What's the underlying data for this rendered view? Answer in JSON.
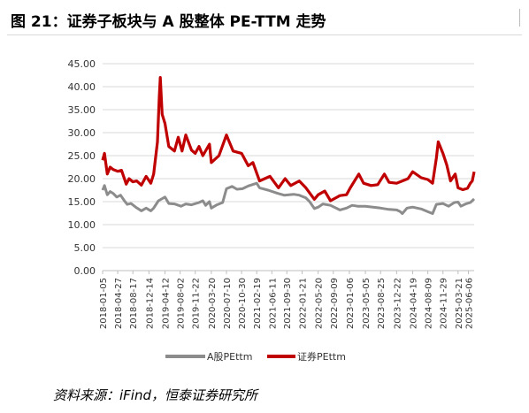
{
  "figure": {
    "title": "图 21：证券子板块与 A 股整体 PE-TTM 走势",
    "source": "资料来源：iFind，恒泰证券研究所"
  },
  "chart_data": {
    "type": "line",
    "ylim": [
      0,
      45
    ],
    "yticks": [
      "0.00",
      "5.00",
      "10.00",
      "15.00",
      "20.00",
      "25.00",
      "30.00",
      "35.00",
      "40.00",
      "45.00"
    ],
    "xlim": [
      "2018-01-05",
      "2025-07-18"
    ],
    "xticks": [
      "2018-01-05",
      "2018-04-27",
      "2018-08-17",
      "2018-12-14",
      "2019-04-12",
      "2019-08-02",
      "2019-11-22",
      "2020-03-20",
      "2020-07-10",
      "2020-10-30",
      "2021-02-19",
      "2021-06-11",
      "2021-09-30",
      "2022-01-21",
      "2022-05-20",
      "2022-09-09",
      "2023-01-06",
      "2023-05-05",
      "2023-08-25",
      "2023-12-22",
      "2024-04-19",
      "2024-08-09",
      "2024-11-29",
      "2025-03-21",
      "2025-06-06"
    ],
    "grid": true,
    "legend_position": "bottom",
    "series": [
      {
        "name": "A股PEttm",
        "color": "#8c8c8c",
        "points": [
          [
            "2018-01-05",
            17.5
          ],
          [
            "2018-01-19",
            18.5
          ],
          [
            "2018-02-09",
            16.5
          ],
          [
            "2018-03-02",
            17.2
          ],
          [
            "2018-03-23",
            16.8
          ],
          [
            "2018-04-20",
            16.0
          ],
          [
            "2018-05-18",
            16.4
          ],
          [
            "2018-06-15",
            15.2
          ],
          [
            "2018-07-06",
            14.4
          ],
          [
            "2018-08-03",
            14.6
          ],
          [
            "2018-09-07",
            13.8
          ],
          [
            "2018-10-19",
            13.0
          ],
          [
            "2018-11-23",
            13.6
          ],
          [
            "2018-12-28",
            13.0
          ],
          [
            "2019-01-18",
            13.6
          ],
          [
            "2019-02-22",
            15.2
          ],
          [
            "2019-04-12",
            16.0
          ],
          [
            "2019-05-10",
            14.6
          ],
          [
            "2019-06-21",
            14.5
          ],
          [
            "2019-08-09",
            14.0
          ],
          [
            "2019-09-13",
            14.5
          ],
          [
            "2019-10-25",
            14.3
          ],
          [
            "2019-12-20",
            14.8
          ],
          [
            "2020-01-17",
            15.2
          ],
          [
            "2020-02-07",
            14.2
          ],
          [
            "2020-03-06",
            15.0
          ],
          [
            "2020-03-20",
            13.6
          ],
          [
            "2020-04-30",
            14.3
          ],
          [
            "2020-06-12",
            14.8
          ],
          [
            "2020-07-10",
            17.8
          ],
          [
            "2020-08-21",
            18.3
          ],
          [
            "2020-09-25",
            17.7
          ],
          [
            "2020-11-06",
            17.8
          ],
          [
            "2020-12-18",
            18.4
          ],
          [
            "2021-02-19",
            19.0
          ],
          [
            "2021-03-12",
            18.0
          ],
          [
            "2021-05-14",
            17.5
          ],
          [
            "2021-07-23",
            16.8
          ],
          [
            "2021-09-10",
            16.4
          ],
          [
            "2021-11-19",
            16.6
          ],
          [
            "2021-12-31",
            16.4
          ],
          [
            "2022-02-18",
            15.8
          ],
          [
            "2022-03-18",
            15.0
          ],
          [
            "2022-04-22",
            13.5
          ],
          [
            "2022-05-20",
            13.8
          ],
          [
            "2022-06-24",
            14.5
          ],
          [
            "2022-08-19",
            14.2
          ],
          [
            "2022-10-28",
            13.2
          ],
          [
            "2022-12-16",
            13.6
          ],
          [
            "2023-01-27",
            14.2
          ],
          [
            "2023-03-10",
            14.0
          ],
          [
            "2023-05-05",
            14.0
          ],
          [
            "2023-06-30",
            13.8
          ],
          [
            "2023-08-25",
            13.6
          ],
          [
            "2023-10-27",
            13.3
          ],
          [
            "2023-12-22",
            13.2
          ],
          [
            "2024-01-19",
            12.8
          ],
          [
            "2024-02-02",
            12.4
          ],
          [
            "2024-03-08",
            13.6
          ],
          [
            "2024-04-19",
            13.8
          ],
          [
            "2024-06-21",
            13.4
          ],
          [
            "2024-08-09",
            12.8
          ],
          [
            "2024-09-13",
            12.4
          ],
          [
            "2024-10-11",
            14.4
          ],
          [
            "2024-11-29",
            14.6
          ],
          [
            "2025-01-10",
            14.0
          ],
          [
            "2025-02-21",
            14.8
          ],
          [
            "2025-03-21",
            14.9
          ],
          [
            "2025-04-11",
            14.0
          ],
          [
            "2025-05-16",
            14.5
          ],
          [
            "2025-06-20",
            14.8
          ],
          [
            "2025-07-18",
            15.6
          ]
        ]
      },
      {
        "name": "证券PEttm",
        "color": "#c00000",
        "points": [
          [
            "2018-01-05",
            24.0
          ],
          [
            "2018-01-19",
            25.5
          ],
          [
            "2018-02-09",
            21.0
          ],
          [
            "2018-03-02",
            22.5
          ],
          [
            "2018-03-23",
            22.0
          ],
          [
            "2018-04-27",
            21.6
          ],
          [
            "2018-05-25",
            21.8
          ],
          [
            "2018-06-29",
            18.8
          ],
          [
            "2018-07-20",
            20.0
          ],
          [
            "2018-08-17",
            19.3
          ],
          [
            "2018-09-14",
            19.5
          ],
          [
            "2018-10-19",
            18.6
          ],
          [
            "2018-11-23",
            20.5
          ],
          [
            "2018-12-28",
            19.0
          ],
          [
            "2019-01-18",
            21.0
          ],
          [
            "2019-02-15",
            28.0
          ],
          [
            "2019-03-01",
            38.0
          ],
          [
            "2019-03-08",
            42.0
          ],
          [
            "2019-03-22",
            34.0
          ],
          [
            "2019-04-12",
            32.0
          ],
          [
            "2019-05-10",
            27.0
          ],
          [
            "2019-06-21",
            26.0
          ],
          [
            "2019-07-19",
            29.0
          ],
          [
            "2019-08-16",
            26.0
          ],
          [
            "2019-09-13",
            29.5
          ],
          [
            "2019-10-25",
            26.2
          ],
          [
            "2019-11-22",
            25.5
          ],
          [
            "2019-12-20",
            27.0
          ],
          [
            "2020-01-17",
            25.0
          ],
          [
            "2020-03-06",
            27.5
          ],
          [
            "2020-03-20",
            23.5
          ],
          [
            "2020-05-15",
            25.0
          ],
          [
            "2020-07-10",
            29.5
          ],
          [
            "2020-07-24",
            28.5
          ],
          [
            "2020-08-28",
            26.0
          ],
          [
            "2020-10-30",
            25.5
          ],
          [
            "2020-12-18",
            22.8
          ],
          [
            "2021-01-22",
            23.5
          ],
          [
            "2021-03-12",
            19.5
          ],
          [
            "2021-05-28",
            20.5
          ],
          [
            "2021-07-30",
            18.0
          ],
          [
            "2021-09-17",
            20.0
          ],
          [
            "2021-10-29",
            18.5
          ],
          [
            "2021-12-31",
            19.5
          ],
          [
            "2022-02-18",
            18.0
          ],
          [
            "2022-04-22",
            15.5
          ],
          [
            "2022-05-20",
            16.5
          ],
          [
            "2022-07-08",
            17.3
          ],
          [
            "2022-08-19",
            15.2
          ],
          [
            "2022-10-28",
            16.3
          ],
          [
            "2022-12-16",
            16.5
          ],
          [
            "2023-01-13",
            18.0
          ],
          [
            "2023-03-17",
            21.0
          ],
          [
            "2023-04-21",
            19.0
          ],
          [
            "2023-06-16",
            18.5
          ],
          [
            "2023-08-04",
            18.7
          ],
          [
            "2023-09-22",
            21.0
          ],
          [
            "2023-10-27",
            19.2
          ],
          [
            "2023-12-22",
            19.0
          ],
          [
            "2024-02-02",
            19.5
          ],
          [
            "2024-03-15",
            20.0
          ],
          [
            "2024-04-19",
            21.5
          ],
          [
            "2024-06-21",
            20.2
          ],
          [
            "2024-08-09",
            19.8
          ],
          [
            "2024-09-13",
            19.0
          ],
          [
            "2024-10-11",
            24.5
          ],
          [
            "2024-10-25",
            28.0
          ],
          [
            "2024-11-29",
            25.5
          ],
          [
            "2024-12-27",
            23.0
          ],
          [
            "2025-01-24",
            19.5
          ],
          [
            "2025-02-28",
            21.0
          ],
          [
            "2025-03-21",
            18.0
          ],
          [
            "2025-04-25",
            17.6
          ],
          [
            "2025-05-30",
            17.9
          ],
          [
            "2025-06-20",
            19.0
          ],
          [
            "2025-07-04",
            19.5
          ],
          [
            "2025-07-18",
            21.5
          ]
        ]
      }
    ]
  }
}
